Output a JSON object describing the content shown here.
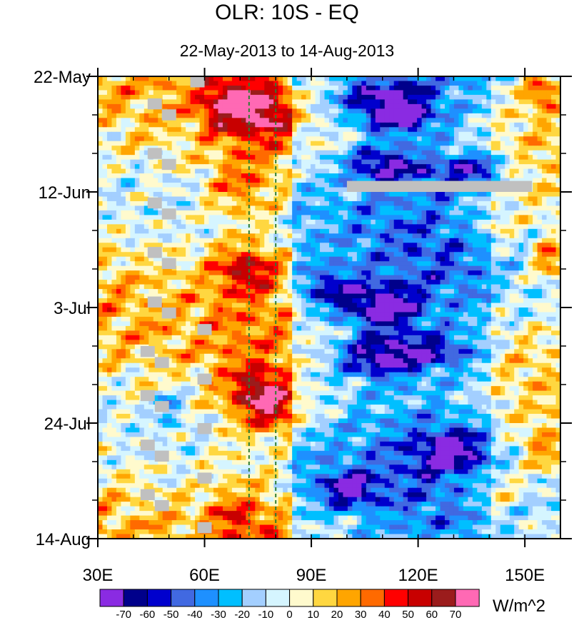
{
  "chart_data": {
    "type": "heatmap",
    "title": "OLR: 10S - EQ",
    "subtitle": "22-May-2013 to 14-Aug-2013",
    "xlabel": "",
    "ylabel": "",
    "xlim": [
      30,
      160
    ],
    "ylim_days": [
      0,
      84
    ],
    "x_ticks": [
      {
        "value": 30,
        "label": "30E"
      },
      {
        "value": 60,
        "label": "60E"
      },
      {
        "value": 90,
        "label": "90E"
      },
      {
        "value": 120,
        "label": "120E"
      },
      {
        "value": 150,
        "label": "150E"
      }
    ],
    "y_ticks": [
      {
        "day": 0,
        "label": "22-May"
      },
      {
        "day": 21,
        "label": "12-Jun"
      },
      {
        "day": 42,
        "label": "3-Jul"
      },
      {
        "day": 63,
        "label": "24-Jul"
      },
      {
        "day": 84,
        "label": "14-Aug"
      }
    ],
    "reference_lines_lon": [
      72.5,
      80
    ],
    "reference_line_color": "#2e7d32",
    "missing_color": "#c0c0c0",
    "colorbar": {
      "unit_label": "W/m^2",
      "levels": [
        "-70",
        "-60",
        "-50",
        "-40",
        "-30",
        "-20",
        "-10",
        "0",
        "10",
        "20",
        "30",
        "40",
        "50",
        "60",
        "70"
      ],
      "colors": [
        "#8a2be2",
        "#00008b",
        "#0000cd",
        "#4169e1",
        "#1e90ff",
        "#00bfff",
        "#a3cfff",
        "#d5f5ff",
        "#fffacd",
        "#ffd740",
        "#ffa500",
        "#ff6a00",
        "#ff0000",
        "#c80000",
        "#9b1c1c",
        "#ff69b4"
      ]
    },
    "anomaly_features": [
      {
        "lon": 67,
        "day": 5,
        "value": 45,
        "rlon": 9,
        "rday": 5
      },
      {
        "lon": 78,
        "day": 7,
        "value": 35,
        "rlon": 8,
        "rday": 5
      },
      {
        "lon": 110,
        "day": 4,
        "value": -55,
        "rlon": 14,
        "rday": 4
      },
      {
        "lon": 115,
        "day": 8,
        "value": -45,
        "rlon": 10,
        "rday": 3
      },
      {
        "lon": 110,
        "day": 16,
        "value": -55,
        "rlon": 10,
        "rday": 3
      },
      {
        "lon": 135,
        "day": 17,
        "value": -45,
        "rlon": 12,
        "rday": 3
      },
      {
        "lon": 155,
        "day": 3,
        "value": 45,
        "rlon": 5,
        "rday": 3
      },
      {
        "lon": 70,
        "day": 20,
        "value": 25,
        "rlon": 9,
        "rday": 5
      },
      {
        "lon": 72,
        "day": 35,
        "value": 45,
        "rlon": 9,
        "rday": 4
      },
      {
        "lon": 110,
        "day": 42,
        "value": -65,
        "rlon": 10,
        "rday": 4
      },
      {
        "lon": 95,
        "day": 39,
        "value": -45,
        "rlon": 8,
        "rday": 4
      },
      {
        "lon": 108,
        "day": 51,
        "value": -60,
        "rlon": 12,
        "rday": 4
      },
      {
        "lon": 125,
        "day": 50,
        "value": -40,
        "rlon": 12,
        "rday": 3
      },
      {
        "lon": 75,
        "day": 57,
        "value": 45,
        "rlon": 8,
        "rday": 4
      },
      {
        "lon": 80,
        "day": 61,
        "value": 40,
        "rlon": 10,
        "rday": 4
      },
      {
        "lon": 100,
        "day": 75,
        "value": -55,
        "rlon": 8,
        "rday": 3
      },
      {
        "lon": 130,
        "day": 68,
        "value": -45,
        "rlon": 10,
        "rday": 4
      },
      {
        "lon": 157,
        "day": 33,
        "value": 45,
        "rlon": 5,
        "rday": 4
      },
      {
        "lon": 140,
        "day": 27,
        "value": 20,
        "rlon": 8,
        "rday": 4
      },
      {
        "lon": 140,
        "day": 75,
        "value": 25,
        "rlon": 10,
        "rday": 4
      },
      {
        "lon": 155,
        "day": 68,
        "value": 30,
        "rlon": 6,
        "rday": 4
      },
      {
        "lon": 70,
        "day": 80,
        "value": 25,
        "rlon": 8,
        "rday": 4
      },
      {
        "lon": 50,
        "day": 60,
        "value": -30,
        "rlon": 4,
        "rday": 3
      }
    ],
    "missing_segments": [
      {
        "lon": [
          100,
          152
        ],
        "day": [
          19,
          21
        ]
      },
      {
        "lon": [
          56,
          60
        ],
        "day": [
          0,
          2
        ]
      },
      {
        "lon": [
          44,
          48
        ],
        "day": [
          4,
          6
        ]
      },
      {
        "lon": [
          48,
          52
        ],
        "day": [
          6,
          8
        ]
      },
      {
        "lon": [
          44,
          48
        ],
        "day": [
          13,
          15
        ]
      },
      {
        "lon": [
          48,
          52
        ],
        "day": [
          15,
          17
        ]
      },
      {
        "lon": [
          44,
          48
        ],
        "day": [
          22,
          24
        ]
      },
      {
        "lon": [
          48,
          52
        ],
        "day": [
          24,
          26
        ]
      },
      {
        "lon": [
          44,
          48
        ],
        "day": [
          31,
          33
        ]
      },
      {
        "lon": [
          48,
          52
        ],
        "day": [
          33,
          35
        ]
      },
      {
        "lon": [
          44,
          48
        ],
        "day": [
          40,
          42
        ]
      },
      {
        "lon": [
          48,
          52
        ],
        "day": [
          42,
          44
        ]
      },
      {
        "lon": [
          58,
          62
        ],
        "day": [
          45,
          47
        ]
      },
      {
        "lon": [
          42,
          46
        ],
        "day": [
          49,
          51
        ]
      },
      {
        "lon": [
          46,
          50
        ],
        "day": [
          51,
          53
        ]
      },
      {
        "lon": [
          58,
          62
        ],
        "day": [
          54,
          56
        ]
      },
      {
        "lon": [
          42,
          46
        ],
        "day": [
          57,
          59
        ]
      },
      {
        "lon": [
          46,
          50
        ],
        "day": [
          59,
          61
        ]
      },
      {
        "lon": [
          58,
          62
        ],
        "day": [
          63,
          65
        ]
      },
      {
        "lon": [
          42,
          46
        ],
        "day": [
          66,
          68
        ]
      },
      {
        "lon": [
          46,
          50
        ],
        "day": [
          68,
          70
        ]
      },
      {
        "lon": [
          58,
          62
        ],
        "day": [
          72,
          74
        ]
      },
      {
        "lon": [
          42,
          46
        ],
        "day": [
          75,
          77
        ]
      },
      {
        "lon": [
          46,
          50
        ],
        "day": [
          77,
          79
        ]
      },
      {
        "lon": [
          58,
          62
        ],
        "day": [
          81,
          83
        ]
      }
    ]
  }
}
